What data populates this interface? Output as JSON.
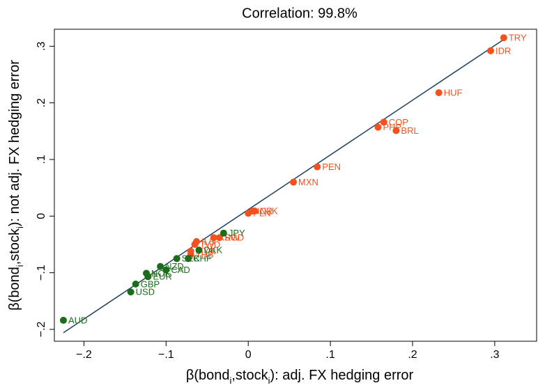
{
  "chart_data": {
    "type": "scatter",
    "title": "Correlation: 99.8%",
    "x_label": [
      "β(bond",
      "i",
      ",stock",
      "i",
      "): adj. FX hedging error"
    ],
    "y_label": [
      "β(bond",
      "i",
      ",stock",
      "i",
      "): not adj. FX hedging error"
    ],
    "xlim": [
      -0.236,
      0.351
    ],
    "ylim": [
      -0.221,
      0.33
    ],
    "xticks": [
      {
        "value": -0.2,
        "label": "−.2"
      },
      {
        "value": -0.1,
        "label": "−.1"
      },
      0,
      {
        "value": 0.1,
        "label": ".1"
      },
      {
        "value": 0.2,
        "label": ".2"
      },
      {
        "value": 0.3,
        "label": ".3"
      }
    ],
    "yticks": [
      {
        "value": -0.2,
        "label": "−.2"
      },
      {
        "value": -0.1,
        "label": "−.1"
      },
      0,
      {
        "value": 0.1,
        "label": ".1"
      },
      {
        "value": 0.2,
        "label": ".2"
      },
      {
        "value": 0.3,
        "label": ".3"
      }
    ],
    "series": [
      {
        "color": "#f4511e",
        "labels": [
          "TRY",
          "IDR",
          "HUF",
          "COP",
          "PHP",
          "BRL",
          "PEN",
          "MXN",
          "PLN",
          "INR",
          "CZK",
          "SGD",
          "KRW",
          "ILS",
          "TWD",
          "MYR",
          "THB"
        ],
        "x": [
          0.311,
          0.295,
          0.232,
          0.165,
          0.158,
          0.18,
          0.084,
          0.055,
          0.0,
          0.005,
          0.008,
          -0.035,
          -0.042,
          -0.063,
          -0.065,
          -0.07,
          -0.07
        ],
        "y": [
          0.315,
          0.292,
          0.218,
          0.166,
          0.157,
          0.151,
          0.087,
          0.06,
          0.005,
          0.009,
          0.009,
          -0.038,
          -0.038,
          -0.045,
          -0.05,
          -0.062,
          -0.068
        ]
      },
      {
        "color": "#1b6d1b",
        "labels": [
          "JPY",
          "DKK",
          "CHF",
          "SEK",
          "NZD",
          "CAD",
          "NOK",
          "EUR",
          "GBP",
          "USD",
          "AUD"
        ],
        "x": [
          -0.03,
          -0.06,
          -0.073,
          -0.087,
          -0.107,
          -0.1,
          -0.124,
          -0.122,
          -0.137,
          -0.143,
          -0.225
        ],
        "y": [
          -0.03,
          -0.06,
          -0.075,
          -0.075,
          -0.089,
          -0.095,
          -0.101,
          -0.107,
          -0.12,
          -0.134,
          -0.184
        ]
      }
    ],
    "fit": {
      "color": "#1f3f5f",
      "x": [
        -0.225,
        0.31
      ],
      "y": [
        -0.206,
        0.311
      ]
    }
  }
}
